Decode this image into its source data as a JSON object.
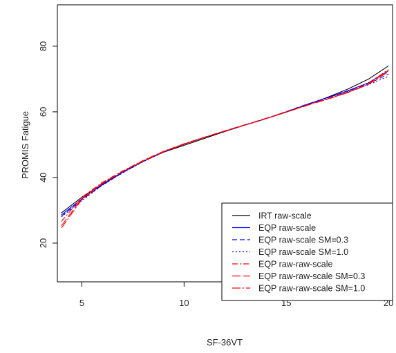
{
  "chart_data": {
    "type": "line",
    "xlabel": "SF-36VT",
    "ylabel": "PROMIS Fatigue",
    "xlim": [
      3.8,
      20.2
    ],
    "ylim": [
      8.2,
      92.6
    ],
    "x_ticks": [
      5,
      10,
      15,
      20
    ],
    "y_ticks": [
      20,
      40,
      60,
      80
    ],
    "legend_position": "bottom-right",
    "series": [
      {
        "name": "IRT raw-scale",
        "color": "#000000",
        "dash": "solid",
        "x": [
          4,
          5,
          6,
          7,
          8,
          9,
          10,
          11,
          12,
          13,
          14,
          15,
          16,
          17,
          18,
          19,
          20
        ],
        "y": [
          29.2,
          34.0,
          38.0,
          41.6,
          44.9,
          47.7,
          49.8,
          51.9,
          54.0,
          56.0,
          57.9,
          59.9,
          62.1,
          64.4,
          66.9,
          69.9,
          74.0
        ]
      },
      {
        "name": "EQP raw-scale",
        "color": "#0000ff",
        "dash": "solid",
        "x": [
          4,
          5,
          6,
          7,
          8,
          9,
          10,
          11,
          12,
          13,
          14,
          15,
          16,
          17,
          18,
          19,
          20
        ],
        "y": [
          28.6,
          33.5,
          37.8,
          41.6,
          45.0,
          47.9,
          50.2,
          52.2,
          54.1,
          56.0,
          57.9,
          60.0,
          62.2,
          64.3,
          66.4,
          68.8,
          72.5
        ]
      },
      {
        "name": "EQP raw-scale SM=0.3",
        "color": "#0000ff",
        "dash": "7,4",
        "x": [
          4,
          5,
          6,
          7,
          8,
          9,
          10,
          11,
          12,
          13,
          14,
          15,
          16,
          17,
          18,
          19,
          20
        ],
        "y": [
          28.2,
          33.2,
          37.7,
          41.5,
          44.9,
          47.8,
          50.1,
          52.2,
          54.1,
          56.0,
          57.9,
          60.1,
          62.3,
          64.3,
          66.3,
          68.5,
          71.5
        ]
      },
      {
        "name": "EQP raw-scale SM=1.0",
        "color": "#0000ff",
        "dash": "2,3",
        "x": [
          4,
          5,
          6,
          7,
          8,
          9,
          10,
          11,
          12,
          13,
          14,
          15,
          16,
          17,
          18,
          19,
          20
        ],
        "y": [
          28.0,
          33.0,
          37.6,
          41.4,
          44.8,
          47.7,
          50.1,
          52.2,
          54.1,
          56.0,
          57.9,
          60.0,
          62.2,
          64.2,
          66.1,
          68.2,
          70.8
        ]
      },
      {
        "name": "EQP raw-raw-scale",
        "color": "#ff0000",
        "dash": "8,3,2,3",
        "x": [
          4,
          5,
          6,
          7,
          8,
          9,
          10,
          11,
          12,
          13,
          14,
          15,
          16,
          17,
          18,
          19,
          20
        ],
        "y": [
          26.6,
          34.0,
          38.5,
          42.0,
          45.2,
          48.0,
          50.3,
          52.3,
          54.2,
          56.1,
          58.0,
          60.0,
          62.0,
          64.0,
          66.0,
          68.6,
          72.9
        ]
      },
      {
        "name": "EQP raw-raw-scale SM=0.3",
        "color": "#ff0000",
        "dash": "12,4",
        "x": [
          4,
          5,
          6,
          7,
          8,
          9,
          10,
          11,
          12,
          13,
          14,
          15,
          16,
          17,
          18,
          19,
          20
        ],
        "y": [
          25.3,
          33.6,
          38.3,
          41.9,
          45.1,
          47.9,
          50.2,
          52.2,
          54.2,
          56.1,
          58.0,
          60.0,
          62.0,
          63.9,
          65.9,
          68.4,
          72.6
        ]
      },
      {
        "name": "EQP raw-raw-scale SM=1.0",
        "color": "#ff0000",
        "dash": "12,3,2,3",
        "x": [
          4,
          5,
          6,
          7,
          8,
          9,
          10,
          11,
          12,
          13,
          14,
          15,
          16,
          17,
          18,
          19,
          20
        ],
        "y": [
          24.6,
          33.3,
          38.1,
          41.8,
          45.0,
          47.8,
          50.1,
          52.2,
          54.1,
          56.0,
          57.9,
          59.9,
          61.9,
          63.8,
          65.8,
          68.3,
          72.2
        ]
      }
    ]
  }
}
